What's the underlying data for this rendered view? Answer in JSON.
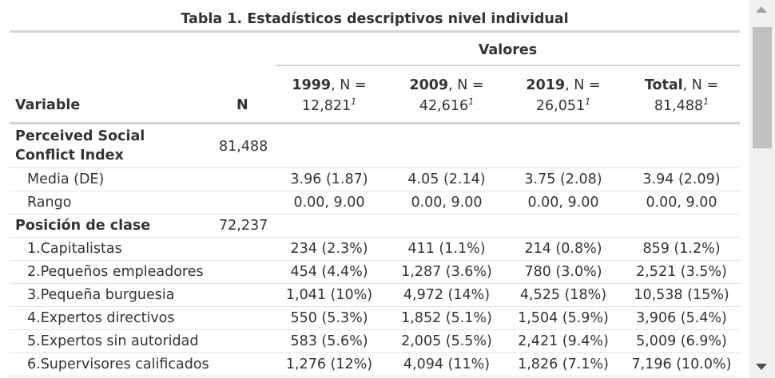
{
  "table": {
    "caption": "Tabla 1. Estadísticos descriptivos nivel individual",
    "spanner": "Valores",
    "headers": {
      "variable": "Variable",
      "n": "N",
      "columns": [
        {
          "bold": "1999",
          "rest": ", N =",
          "count": "12,821",
          "mark": "1"
        },
        {
          "bold": "2009",
          "rest": ", N =",
          "count": "42,616",
          "mark": "1"
        },
        {
          "bold": "2019",
          "rest": ", N =",
          "count": "26,051",
          "mark": "1"
        },
        {
          "bold": "Total",
          "rest": ", N =",
          "count": "81,488",
          "mark": "1"
        }
      ]
    },
    "rows": [
      {
        "label": "Perceived Social Conflict Index",
        "n": "81,488",
        "values": [
          "",
          "",
          "",
          ""
        ]
      },
      {
        "label": "Media (DE)",
        "n": "",
        "values": [
          "3.96 (1.87)",
          "4.05 (2.14)",
          "3.75 (2.08)",
          "3.94 (2.09)"
        ]
      },
      {
        "label": "Rango",
        "n": "",
        "values": [
          "0.00, 9.00",
          "0.00, 9.00",
          "0.00, 9.00",
          "0.00, 9.00"
        ]
      },
      {
        "label": "Posición de clase",
        "n": "72,237",
        "values": [
          "",
          "",
          "",
          ""
        ]
      },
      {
        "label": "1.Capitalistas",
        "n": "",
        "values": [
          "234 (2.3%)",
          "411 (1.1%)",
          "214 (0.8%)",
          "859 (1.2%)"
        ]
      },
      {
        "label": "2.Pequeños empleadores",
        "n": "",
        "values": [
          "454 (4.4%)",
          "1,287 (3.6%)",
          "780 (3.0%)",
          "2,521 (3.5%)"
        ]
      },
      {
        "label": "3.Pequeña burguesia",
        "n": "",
        "values": [
          "1,041 (10%)",
          "4,972 (14%)",
          "4,525 (18%)",
          "10,538 (15%)"
        ]
      },
      {
        "label": "4.Expertos directivos",
        "n": "",
        "values": [
          "550 (5.3%)",
          "1,852 (5.1%)",
          "1,504 (5.9%)",
          "3,906 (5.4%)"
        ]
      },
      {
        "label": "5.Expertos sin autoridad",
        "n": "",
        "values": [
          "583 (5.6%)",
          "2,005 (5.5%)",
          "2,421 (9.4%)",
          "5,009 (6.9%)"
        ]
      },
      {
        "label": "6.Supervisores calificados",
        "n": "",
        "values": [
          "1,276 (12%)",
          "4,094 (11%)",
          "1,826 (7.1%)",
          "7,196 (10.0%)"
        ]
      }
    ]
  }
}
